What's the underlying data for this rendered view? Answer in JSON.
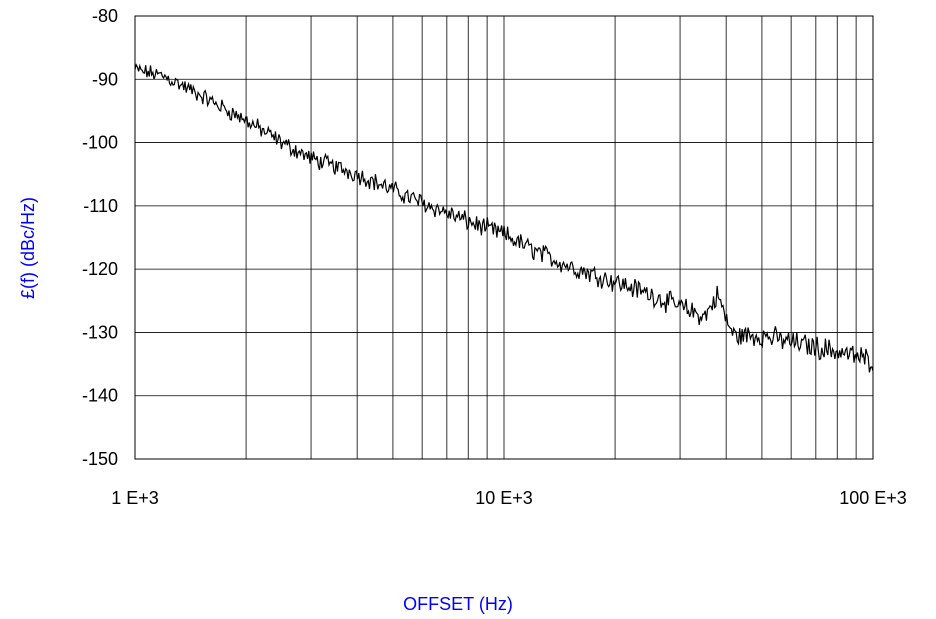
{
  "chart_data": {
    "type": "line",
    "title": "",
    "xlabel": "OFFSET (Hz)",
    "ylabel": "£(f) (dBc/Hz)",
    "xscale": "log",
    "xlim": [
      1000,
      100000
    ],
    "ylim": [
      -150,
      -80
    ],
    "xtick_labels": [
      "1 E+3",
      "10 E+3",
      "100 E+3"
    ],
    "ytick_labels": [
      "-80",
      "-90",
      "-100",
      "-110",
      "-120",
      "-130",
      "-140",
      "-150"
    ],
    "grid": true,
    "legend": "none",
    "colors": {
      "label": "#0000ff",
      "line": "#000000",
      "grid": "#000000"
    },
    "series": [
      {
        "x": [
          1000,
          1200,
          1500,
          2000,
          2500,
          3000,
          4000,
          5000,
          6000,
          8000,
          10000,
          12000,
          15000,
          20000,
          25000,
          30000,
          35000,
          38000,
          40000,
          42000,
          50000,
          60000,
          80000,
          100000
        ],
        "y": [
          -88.5,
          -89.5,
          -92.5,
          -96.5,
          -100,
          -102.5,
          -105,
          -107.5,
          -109.5,
          -112.5,
          -114.5,
          -117,
          -119.5,
          -122,
          -124,
          -126,
          -127.5,
          -124,
          -128,
          -130.5,
          -130.5,
          -131.5,
          -133,
          -134.5
        ]
      }
    ]
  }
}
